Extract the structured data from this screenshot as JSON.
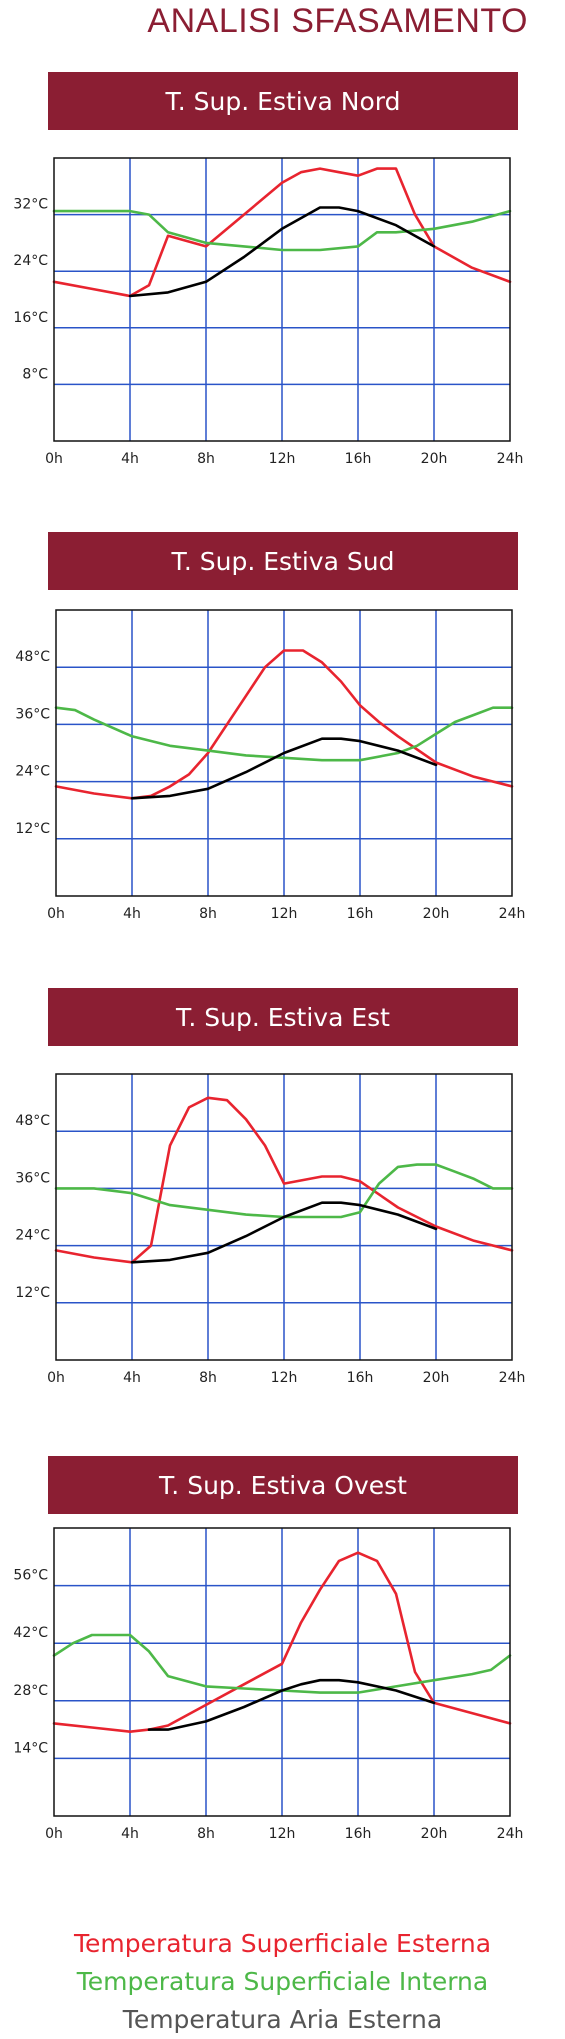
{
  "page": {
    "title": "ANALISI SFASAMENTO"
  },
  "colors": {
    "external_surface": "#e8242f",
    "internal_surface": "#4db848",
    "external_air": "#000000",
    "grid": "#2a54c8",
    "banner": "#8b1e33",
    "title": "#8b1e33",
    "legend_air": "#555555"
  },
  "legend": {
    "external_surface": "Temperatura Superficiale Esterna",
    "internal_surface": "Temperatura Superficiale Interna",
    "external_air": "Temperatura Aria Esterna"
  },
  "chart_data": [
    {
      "type": "line",
      "title": "T. Sup. Estiva Nord",
      "xlim": [
        0,
        24
      ],
      "ylim": [
        0,
        40
      ],
      "x_ticks": [
        "0h",
        "4h",
        "8h",
        "12h",
        "16h",
        "20h",
        "24h"
      ],
      "y_ticks": [
        "8°C",
        "16°C",
        "24°C",
        "32°C"
      ],
      "y_tick_values": [
        8,
        16,
        24,
        32
      ],
      "series": [
        {
          "key": "external_surface",
          "points": [
            [
              0,
              22.5
            ],
            [
              2,
              21.5
            ],
            [
              4,
              20.5
            ],
            [
              5,
              22
            ],
            [
              6,
              29
            ],
            [
              8,
              27.5
            ],
            [
              10,
              32
            ],
            [
              12,
              36.5
            ],
            [
              13,
              38
            ],
            [
              14,
              38.5
            ],
            [
              15,
              38
            ],
            [
              16,
              37.5
            ],
            [
              17,
              38.5
            ],
            [
              18,
              38.5
            ],
            [
              19,
              32
            ],
            [
              20,
              27.5
            ],
            [
              22,
              24.5
            ],
            [
              24,
              22.5
            ]
          ]
        },
        {
          "key": "internal_surface",
          "points": [
            [
              0,
              32.5
            ],
            [
              2,
              32.5
            ],
            [
              4,
              32.5
            ],
            [
              5,
              32
            ],
            [
              6,
              29.5
            ],
            [
              8,
              28
            ],
            [
              10,
              27.5
            ],
            [
              12,
              27
            ],
            [
              14,
              27
            ],
            [
              16,
              27.5
            ],
            [
              17,
              29.5
            ],
            [
              18,
              29.5
            ],
            [
              20,
              30
            ],
            [
              22,
              31
            ],
            [
              24,
              32.5
            ]
          ]
        },
        {
          "key": "external_air",
          "points": [
            [
              4,
              20.5
            ],
            [
              6,
              21
            ],
            [
              8,
              22.5
            ],
            [
              10,
              26
            ],
            [
              12,
              30
            ],
            [
              14,
              33
            ],
            [
              15,
              33
            ],
            [
              16,
              32.5
            ],
            [
              18,
              30.5
            ],
            [
              20,
              27.5
            ]
          ]
        }
      ]
    },
    {
      "type": "line",
      "title": "T. Sup. Estiva Sud",
      "xlim": [
        0,
        24
      ],
      "ylim": [
        0,
        60
      ],
      "x_ticks": [
        "0h",
        "4h",
        "8h",
        "12h",
        "16h",
        "20h",
        "24h"
      ],
      "y_ticks": [
        "12°C",
        "24°C",
        "36°C",
        "48°C"
      ],
      "y_tick_values": [
        12,
        24,
        36,
        48
      ],
      "series": [
        {
          "key": "external_surface",
          "points": [
            [
              0,
              23
            ],
            [
              2,
              21.5
            ],
            [
              4,
              20.5
            ],
            [
              5,
              21
            ],
            [
              6,
              23
            ],
            [
              7,
              25.5
            ],
            [
              8,
              30
            ],
            [
              10,
              42
            ],
            [
              11,
              48
            ],
            [
              12,
              51.5
            ],
            [
              13,
              51.5
            ],
            [
              14,
              49
            ],
            [
              15,
              45
            ],
            [
              16,
              40
            ],
            [
              17,
              36.5
            ],
            [
              18,
              33.5
            ],
            [
              20,
              28
            ],
            [
              22,
              25
            ],
            [
              24,
              23
            ]
          ]
        },
        {
          "key": "internal_surface",
          "points": [
            [
              0,
              39.5
            ],
            [
              1,
              39
            ],
            [
              2,
              37
            ],
            [
              4,
              33.5
            ],
            [
              6,
              31.5
            ],
            [
              8,
              30.5
            ],
            [
              10,
              29.5
            ],
            [
              12,
              29
            ],
            [
              14,
              28.5
            ],
            [
              16,
              28.5
            ],
            [
              18,
              30
            ],
            [
              19,
              31.5
            ],
            [
              20,
              34
            ],
            [
              21,
              36.5
            ],
            [
              22,
              38
            ],
            [
              23,
              39.5
            ],
            [
              24,
              39.5
            ]
          ]
        },
        {
          "key": "external_air",
          "points": [
            [
              4,
              20.5
            ],
            [
              6,
              21
            ],
            [
              8,
              22.5
            ],
            [
              10,
              26
            ],
            [
              12,
              30
            ],
            [
              14,
              33
            ],
            [
              15,
              33
            ],
            [
              16,
              32.5
            ],
            [
              18,
              30.5
            ],
            [
              20,
              27.5
            ]
          ]
        }
      ]
    },
    {
      "type": "line",
      "title": "T. Sup. Estiva Est",
      "xlim": [
        0,
        24
      ],
      "ylim": [
        0,
        60
      ],
      "x_ticks": [
        "0h",
        "4h",
        "8h",
        "12h",
        "16h",
        "20h",
        "24h"
      ],
      "y_ticks": [
        "12°C",
        "24°C",
        "36°C",
        "48°C"
      ],
      "y_tick_values": [
        12,
        24,
        36,
        48
      ],
      "series": [
        {
          "key": "external_surface",
          "points": [
            [
              0,
              23
            ],
            [
              2,
              21.5
            ],
            [
              4,
              20.5
            ],
            [
              5,
              24
            ],
            [
              6,
              45
            ],
            [
              7,
              53
            ],
            [
              8,
              55
            ],
            [
              9,
              54.5
            ],
            [
              10,
              50.5
            ],
            [
              11,
              45
            ],
            [
              12,
              37
            ],
            [
              14,
              38.5
            ],
            [
              15,
              38.5
            ],
            [
              16,
              37.5
            ],
            [
              18,
              32
            ],
            [
              20,
              28
            ],
            [
              22,
              25
            ],
            [
              24,
              23
            ]
          ]
        },
        {
          "key": "internal_surface",
          "points": [
            [
              0,
              36
            ],
            [
              2,
              36
            ],
            [
              4,
              35
            ],
            [
              6,
              32.5
            ],
            [
              8,
              31.5
            ],
            [
              10,
              30.5
            ],
            [
              12,
              30
            ],
            [
              14,
              30
            ],
            [
              15,
              30
            ],
            [
              16,
              31
            ],
            [
              17,
              37
            ],
            [
              18,
              40.5
            ],
            [
              19,
              41
            ],
            [
              20,
              41
            ],
            [
              21,
              39.5
            ],
            [
              22,
              38
            ],
            [
              23,
              36
            ],
            [
              24,
              36
            ]
          ]
        },
        {
          "key": "external_air",
          "points": [
            [
              4,
              20.5
            ],
            [
              6,
              21
            ],
            [
              8,
              22.5
            ],
            [
              10,
              26
            ],
            [
              12,
              30
            ],
            [
              14,
              33
            ],
            [
              15,
              33
            ],
            [
              16,
              32.5
            ],
            [
              18,
              30.5
            ],
            [
              20,
              27.5
            ]
          ]
        }
      ]
    },
    {
      "type": "line",
      "title": "T. Sup. Estiva Ovest",
      "xlim": [
        0,
        24
      ],
      "ylim": [
        0,
        70
      ],
      "x_ticks": [
        "0h",
        "4h",
        "8h",
        "12h",
        "16h",
        "20h",
        "24h"
      ],
      "y_ticks": [
        "14°C",
        "28°C",
        "42°C",
        "56°C"
      ],
      "y_tick_values": [
        14,
        28,
        42,
        56
      ],
      "series": [
        {
          "key": "external_surface",
          "points": [
            [
              0,
              22.5
            ],
            [
              2,
              21.5
            ],
            [
              4,
              20.5
            ],
            [
              5,
              21
            ],
            [
              6,
              22
            ],
            [
              8,
              27
            ],
            [
              10,
              32
            ],
            [
              12,
              37
            ],
            [
              13,
              47
            ],
            [
              14,
              55
            ],
            [
              15,
              62
            ],
            [
              16,
              64
            ],
            [
              17,
              62
            ],
            [
              18,
              54
            ],
            [
              19,
              35
            ],
            [
              20,
              27.5
            ],
            [
              22,
              25
            ],
            [
              24,
              22.5
            ]
          ]
        },
        {
          "key": "internal_surface",
          "points": [
            [
              0,
              39
            ],
            [
              1,
              42
            ],
            [
              2,
              44
            ],
            [
              4,
              44
            ],
            [
              5,
              40
            ],
            [
              6,
              34
            ],
            [
              8,
              31.5
            ],
            [
              10,
              31
            ],
            [
              12,
              30.5
            ],
            [
              14,
              30
            ],
            [
              16,
              30
            ],
            [
              18,
              31.5
            ],
            [
              20,
              33
            ],
            [
              22,
              34.5
            ],
            [
              23,
              35.5
            ],
            [
              24,
              39
            ]
          ]
        },
        {
          "key": "external_air",
          "points": [
            [
              5,
              21
            ],
            [
              6,
              21
            ],
            [
              8,
              23
            ],
            [
              10,
              26.5
            ],
            [
              12,
              30.5
            ],
            [
              13,
              32
            ],
            [
              14,
              33
            ],
            [
              15,
              33
            ],
            [
              16,
              32.5
            ],
            [
              18,
              30.5
            ],
            [
              20,
              27.5
            ]
          ]
        }
      ]
    }
  ]
}
